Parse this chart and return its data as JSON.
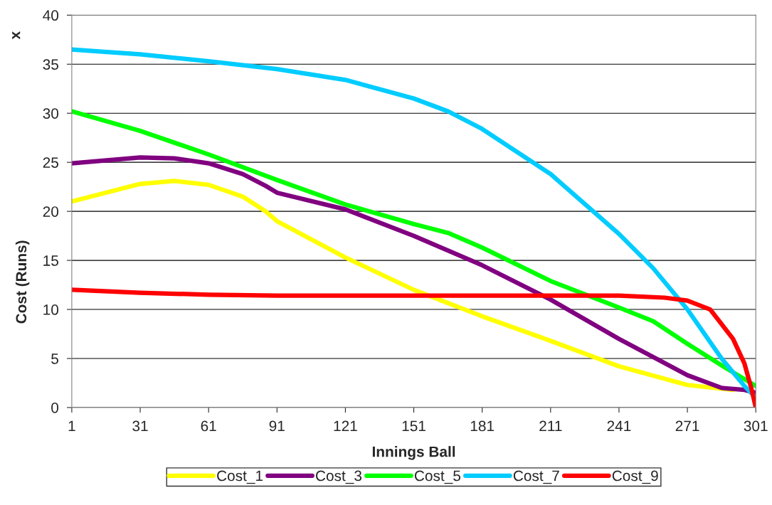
{
  "chart_data": {
    "type": "line",
    "xlabel": "Innings Ball",
    "ylabel": "Cost (Runs)",
    "annotations": [
      "x"
    ],
    "series": [
      {
        "name": "Cost_1",
        "color": "#ffff00",
        "x": [
          1,
          31,
          46,
          61,
          76,
          86,
          91,
          121,
          151,
          181,
          211,
          241,
          271,
          291
        ],
        "values": [
          21,
          22.8,
          23.1,
          22.7,
          21.5,
          20,
          19,
          15.3,
          12,
          9.3,
          6.8,
          4.2,
          2.3,
          1.8
        ]
      },
      {
        "name": "Cost_3",
        "color": "#800080",
        "x": [
          1,
          31,
          46,
          61,
          76,
          86,
          91,
          121,
          151,
          181,
          211,
          241,
          271,
          286,
          296,
          301
        ],
        "values": [
          24.9,
          25.5,
          25.4,
          24.9,
          23.8,
          22.6,
          21.9,
          20.2,
          17.5,
          14.5,
          11,
          7,
          3.3,
          2,
          1.8,
          1.5
        ]
      },
      {
        "name": "Cost_5",
        "color": "#00ff00",
        "x": [
          1,
          31,
          61,
          91,
          121,
          151,
          166,
          181,
          211,
          241,
          256,
          271,
          286,
          301
        ],
        "values": [
          30.2,
          28.2,
          25.8,
          23.2,
          20.7,
          18.7,
          17.8,
          16.3,
          12.9,
          10.2,
          8.8,
          6.5,
          4.3,
          2.2
        ]
      },
      {
        "name": "Cost_7",
        "color": "#00ccff",
        "x": [
          1,
          31,
          61,
          91,
          121,
          151,
          166,
          181,
          211,
          241,
          256,
          271,
          286,
          296,
          301
        ],
        "values": [
          36.5,
          36,
          35.3,
          34.5,
          33.4,
          31.5,
          30.2,
          28.4,
          23.8,
          17.7,
          14.2,
          10,
          5,
          2.2,
          1
        ]
      },
      {
        "name": "Cost_9",
        "color": "#ff0000",
        "x": [
          1,
          31,
          61,
          91,
          151,
          211,
          241,
          261,
          271,
          281,
          291,
          296,
          299,
          301
        ],
        "values": [
          12,
          11.7,
          11.5,
          11.4,
          11.4,
          11.4,
          11.4,
          11.2,
          10.9,
          10,
          7,
          4.5,
          2,
          0
        ]
      }
    ],
    "xlim": [
      1,
      301
    ],
    "xticks": [
      1,
      31,
      61,
      91,
      121,
      151,
      181,
      211,
      241,
      271,
      301
    ],
    "ylim": [
      0,
      40
    ],
    "yticks": [
      0,
      5,
      10,
      15,
      20,
      25,
      30,
      35,
      40
    ],
    "grid": "y",
    "legend": "bottom",
    "marker": "none",
    "line_style": "solid"
  }
}
